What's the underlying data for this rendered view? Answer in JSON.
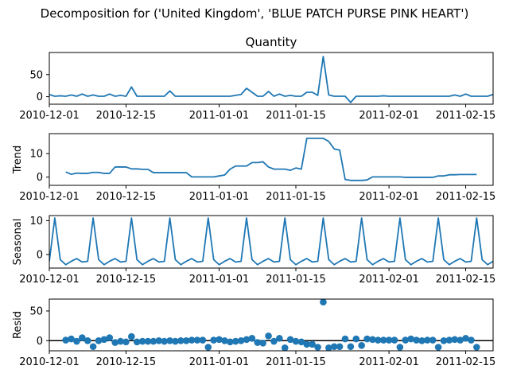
{
  "chart_data": {
    "type": "line",
    "title": "Decomposition for ('United Kingdom', 'BLUE PATCH PURSE PINK HEART')",
    "x_tick_labels": [
      "2010-12-01",
      "2010-12-15",
      "2011-01-01",
      "2011-01-15",
      "2011-02-01",
      "2011-02-15"
    ],
    "panels": [
      {
        "name": "quantity",
        "title": "Quantity",
        "ylabel": "",
        "type": "line",
        "ylim": [
          -17,
          100
        ],
        "yticks": [
          0,
          50
        ],
        "points": [
          [
            "2010-12-01",
            5
          ],
          [
            "2010-12-02",
            1
          ],
          [
            "2010-12-03",
            2
          ],
          [
            "2010-12-04",
            1
          ],
          [
            "2010-12-05",
            4
          ],
          [
            "2010-12-06",
            1
          ],
          [
            "2010-12-07",
            6
          ],
          [
            "2010-12-08",
            1
          ],
          [
            "2010-12-09",
            4
          ],
          [
            "2010-12-10",
            1
          ],
          [
            "2010-12-11",
            1
          ],
          [
            "2010-12-12",
            6
          ],
          [
            "2010-12-13",
            1
          ],
          [
            "2010-12-14",
            3
          ],
          [
            "2010-12-15",
            1
          ],
          [
            "2010-12-16",
            22
          ],
          [
            "2010-12-17",
            1
          ],
          [
            "2010-12-18",
            1
          ],
          [
            "2010-12-19",
            1
          ],
          [
            "2010-12-20",
            1
          ],
          [
            "2010-12-21",
            1
          ],
          [
            "2010-12-22",
            1
          ],
          [
            "2010-12-23",
            13
          ],
          [
            "2010-12-24",
            1
          ],
          [
            "2010-12-25",
            1
          ],
          [
            "2010-12-26",
            1
          ],
          [
            "2010-12-27",
            1
          ],
          [
            "2010-12-28",
            1
          ],
          [
            "2010-12-29",
            1
          ],
          [
            "2010-12-30",
            1
          ],
          [
            "2010-12-31",
            1
          ],
          [
            "2011-01-01",
            1
          ],
          [
            "2011-01-02",
            1
          ],
          [
            "2011-01-03",
            1
          ],
          [
            "2011-01-04",
            3
          ],
          [
            "2011-01-05",
            5
          ],
          [
            "2011-01-06",
            19
          ],
          [
            "2011-01-07",
            10
          ],
          [
            "2011-01-08",
            1
          ],
          [
            "2011-01-09",
            1
          ],
          [
            "2011-01-10",
            12
          ],
          [
            "2011-01-11",
            1
          ],
          [
            "2011-01-12",
            6
          ],
          [
            "2011-01-13",
            1
          ],
          [
            "2011-01-14",
            3
          ],
          [
            "2011-01-15",
            1
          ],
          [
            "2011-01-16",
            1
          ],
          [
            "2011-01-17",
            10
          ],
          [
            "2011-01-18",
            10
          ],
          [
            "2011-01-19",
            3
          ],
          [
            "2011-01-20",
            91
          ],
          [
            "2011-01-21",
            4
          ],
          [
            "2011-01-22",
            1
          ],
          [
            "2011-01-23",
            1
          ],
          [
            "2011-01-24",
            1
          ],
          [
            "2011-01-25",
            -13
          ],
          [
            "2011-01-26",
            1
          ],
          [
            "2011-01-27",
            1
          ],
          [
            "2011-01-28",
            1
          ],
          [
            "2011-01-29",
            1
          ],
          [
            "2011-01-30",
            1
          ],
          [
            "2011-01-31",
            2
          ],
          [
            "2011-02-01",
            1
          ],
          [
            "2011-02-02",
            1
          ],
          [
            "2011-02-03",
            1
          ],
          [
            "2011-02-04",
            1
          ],
          [
            "2011-02-05",
            1
          ],
          [
            "2011-02-06",
            1
          ],
          [
            "2011-02-07",
            1
          ],
          [
            "2011-02-08",
            1
          ],
          [
            "2011-02-09",
            1
          ],
          [
            "2011-02-10",
            1
          ],
          [
            "2011-02-11",
            1
          ],
          [
            "2011-02-12",
            1
          ],
          [
            "2011-02-13",
            4
          ],
          [
            "2011-02-14",
            1
          ],
          [
            "2011-02-15",
            6
          ],
          [
            "2011-02-16",
            1
          ],
          [
            "2011-02-17",
            1
          ],
          [
            "2011-02-18",
            1
          ],
          [
            "2011-02-19",
            1
          ],
          [
            "2011-02-20",
            5
          ]
        ]
      },
      {
        "name": "trend",
        "title": "",
        "ylabel": "Trend",
        "type": "line",
        "ylim": [
          -3.5,
          18.5
        ],
        "yticks": [
          0,
          10
        ],
        "points": [
          [
            "2010-12-04",
            2.2
          ],
          [
            "2010-12-05",
            1.2
          ],
          [
            "2010-12-06",
            1.7
          ],
          [
            "2010-12-07",
            1.6
          ],
          [
            "2010-12-08",
            1.6
          ],
          [
            "2010-12-09",
            2.0
          ],
          [
            "2010-12-10",
            2.0
          ],
          [
            "2010-12-11",
            1.6
          ],
          [
            "2010-12-12",
            1.6
          ],
          [
            "2010-12-13",
            4.3
          ],
          [
            "2010-12-14",
            4.3
          ],
          [
            "2010-12-15",
            4.3
          ],
          [
            "2010-12-16",
            3.5
          ],
          [
            "2010-12-17",
            3.5
          ],
          [
            "2010-12-18",
            3.3
          ],
          [
            "2010-12-19",
            3.3
          ],
          [
            "2010-12-20",
            1.9
          ],
          [
            "2010-12-21",
            1.9
          ],
          [
            "2010-12-22",
            1.9
          ],
          [
            "2010-12-23",
            1.9
          ],
          [
            "2010-12-24",
            1.9
          ],
          [
            "2010-12-25",
            1.9
          ],
          [
            "2010-12-26",
            1.9
          ],
          [
            "2010-12-27",
            0.1
          ],
          [
            "2010-12-28",
            0.1
          ],
          [
            "2010-12-29",
            0.1
          ],
          [
            "2010-12-30",
            0.1
          ],
          [
            "2010-12-31",
            0.1
          ],
          [
            "2011-01-01",
            0.5
          ],
          [
            "2011-01-02",
            0.9
          ],
          [
            "2011-01-03",
            3.4
          ],
          [
            "2011-01-04",
            4.7
          ],
          [
            "2011-01-05",
            4.7
          ],
          [
            "2011-01-06",
            4.7
          ],
          [
            "2011-01-07",
            6.2
          ],
          [
            "2011-01-08",
            6.2
          ],
          [
            "2011-01-09",
            6.5
          ],
          [
            "2011-01-10",
            4.3
          ],
          [
            "2011-01-11",
            3.4
          ],
          [
            "2011-01-12",
            3.4
          ],
          [
            "2011-01-13",
            3.4
          ],
          [
            "2011-01-14",
            2.9
          ],
          [
            "2011-01-15",
            3.9
          ],
          [
            "2011-01-16",
            3.4
          ],
          [
            "2011-01-17",
            16.5
          ],
          [
            "2011-01-18",
            16.5
          ],
          [
            "2011-01-19",
            16.5
          ],
          [
            "2011-01-20",
            16.5
          ],
          [
            "2011-01-21",
            15.2
          ],
          [
            "2011-01-22",
            12.0
          ],
          [
            "2011-01-23",
            11.5
          ],
          [
            "2011-01-24",
            -1.0
          ],
          [
            "2011-01-25",
            -1.4
          ],
          [
            "2011-01-26",
            -1.4
          ],
          [
            "2011-01-27",
            -1.4
          ],
          [
            "2011-01-28",
            -1.2
          ],
          [
            "2011-01-29",
            0.1
          ],
          [
            "2011-01-30",
            0.1
          ],
          [
            "2011-01-31",
            0.1
          ],
          [
            "2011-02-01",
            0.1
          ],
          [
            "2011-02-02",
            0.1
          ],
          [
            "2011-02-03",
            0.1
          ],
          [
            "2011-02-04",
            -0.1
          ],
          [
            "2011-02-05",
            -0.1
          ],
          [
            "2011-02-06",
            -0.1
          ],
          [
            "2011-02-07",
            -0.1
          ],
          [
            "2011-02-08",
            -0.1
          ],
          [
            "2011-02-09",
            -0.1
          ],
          [
            "2011-02-10",
            0.5
          ],
          [
            "2011-02-11",
            0.5
          ],
          [
            "2011-02-12",
            1.0
          ],
          [
            "2011-02-13",
            1.0
          ],
          [
            "2011-02-14",
            1.1
          ],
          [
            "2011-02-15",
            1.1
          ],
          [
            "2011-02-16",
            1.1
          ],
          [
            "2011-02-17",
            1.1
          ]
        ]
      },
      {
        "name": "seasonal",
        "title": "",
        "ylabel": "Seasonal",
        "type": "line",
        "ylim": [
          -4,
          11.5
        ],
        "yticks": [
          0,
          10
        ],
        "period_days": 7,
        "first_peak": "2010-12-02",
        "pattern": [
          10.8,
          -1.5,
          -3.0,
          -2.0,
          -1.2,
          -2.2,
          -2.0
        ],
        "range": [
          "2010-12-01",
          "2011-02-20"
        ]
      },
      {
        "name": "resid",
        "title": "",
        "ylabel": "Resid",
        "type": "scatter",
        "ylim": [
          -17,
          70
        ],
        "yticks": [
          0,
          50
        ],
        "zero_line": true,
        "points": [
          [
            "2010-12-04",
            1
          ],
          [
            "2010-12-05",
            3
          ],
          [
            "2010-12-06",
            -1
          ],
          [
            "2010-12-07",
            5
          ],
          [
            "2010-12-08",
            0
          ],
          [
            "2010-12-09",
            -10
          ],
          [
            "2010-12-10",
            0
          ],
          [
            "2010-12-11",
            2
          ],
          [
            "2010-12-12",
            5
          ],
          [
            "2010-12-13",
            -3
          ],
          [
            "2010-12-14",
            -1
          ],
          [
            "2010-12-15",
            -2
          ],
          [
            "2010-12-16",
            7
          ],
          [
            "2010-12-17",
            -2
          ],
          [
            "2010-12-18",
            -1
          ],
          [
            "2010-12-19",
            -1
          ],
          [
            "2010-12-20",
            -1
          ],
          [
            "2010-12-21",
            0
          ],
          [
            "2010-12-22",
            -1
          ],
          [
            "2010-12-23",
            0
          ],
          [
            "2010-12-24",
            -1
          ],
          [
            "2010-12-25",
            0
          ],
          [
            "2010-12-26",
            0
          ],
          [
            "2010-12-27",
            1
          ],
          [
            "2010-12-28",
            1
          ],
          [
            "2010-12-29",
            1
          ],
          [
            "2010-12-30",
            -11
          ],
          [
            "2010-12-31",
            1
          ],
          [
            "2011-01-01",
            2
          ],
          [
            "2011-01-02",
            0
          ],
          [
            "2011-01-03",
            -2
          ],
          [
            "2011-01-04",
            -1
          ],
          [
            "2011-01-05",
            0
          ],
          [
            "2011-01-06",
            2
          ],
          [
            "2011-01-07",
            4
          ],
          [
            "2011-01-08",
            -3
          ],
          [
            "2011-01-09",
            -4
          ],
          [
            "2011-01-10",
            8
          ],
          [
            "2011-01-11",
            -1
          ],
          [
            "2011-01-12",
            4
          ],
          [
            "2011-01-13",
            -12
          ],
          [
            "2011-01-14",
            2
          ],
          [
            "2011-01-15",
            -1
          ],
          [
            "2011-01-16",
            -2
          ],
          [
            "2011-01-17",
            -6
          ],
          [
            "2011-01-18",
            -6
          ],
          [
            "2011-01-19",
            -11
          ],
          [
            "2011-01-20",
            65
          ],
          [
            "2011-01-21",
            -12
          ],
          [
            "2011-01-22",
            -10
          ],
          [
            "2011-01-23",
            -10
          ],
          [
            "2011-01-24",
            3
          ],
          [
            "2011-01-25",
            -10
          ],
          [
            "2011-01-26",
            3
          ],
          [
            "2011-01-27",
            -8
          ],
          [
            "2011-01-28",
            3
          ],
          [
            "2011-01-29",
            2
          ],
          [
            "2011-01-30",
            1
          ],
          [
            "2011-01-31",
            1
          ],
          [
            "2011-02-01",
            1
          ],
          [
            "2011-02-02",
            1
          ],
          [
            "2011-02-03",
            -11
          ],
          [
            "2011-02-04",
            1
          ],
          [
            "2011-02-05",
            3
          ],
          [
            "2011-02-06",
            1
          ],
          [
            "2011-02-07",
            0
          ],
          [
            "2011-02-08",
            1
          ],
          [
            "2011-02-09",
            1
          ],
          [
            "2011-02-10",
            -11
          ],
          [
            "2011-02-11",
            0
          ],
          [
            "2011-02-12",
            1
          ],
          [
            "2011-02-13",
            2
          ],
          [
            "2011-02-14",
            1
          ],
          [
            "2011-02-15",
            4
          ],
          [
            "2011-02-16",
            1
          ],
          [
            "2011-02-17",
            -11
          ]
        ]
      }
    ]
  }
}
